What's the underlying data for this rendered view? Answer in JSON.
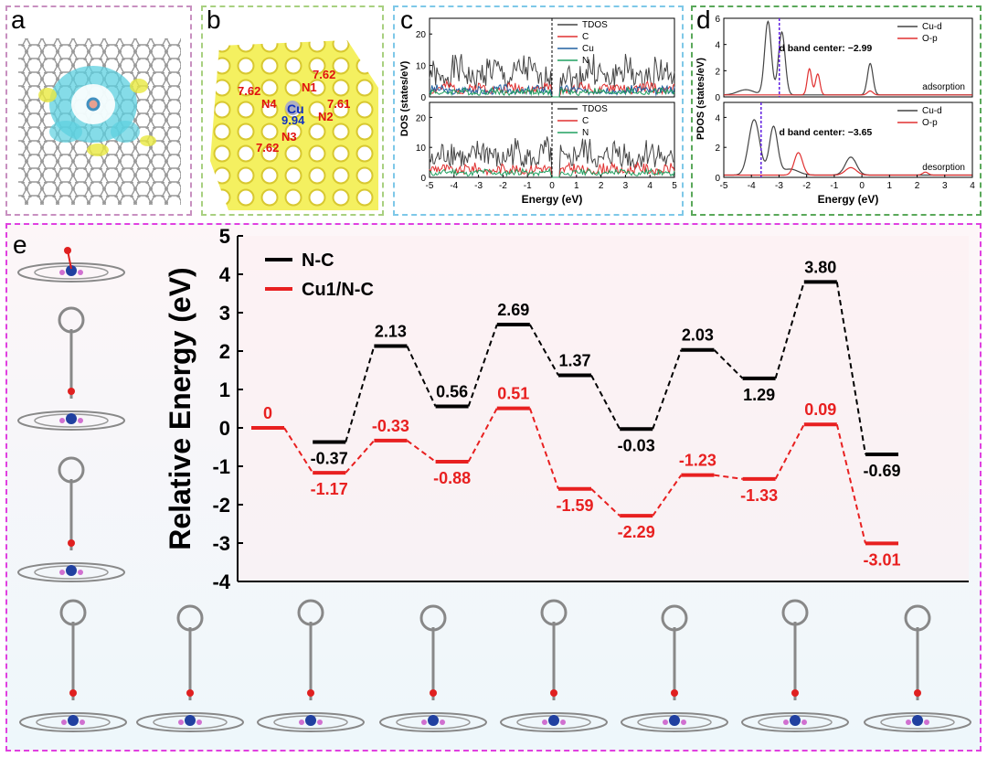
{
  "colors": {
    "panel_a": "#c890c0",
    "panel_b": "#a8d080",
    "panel_c": "#7ec8e8",
    "panel_d": "#5aa85a",
    "panel_e": "#e040e0",
    "tdos": "#444444",
    "carbon": "#e03030",
    "copper": "#2060a0",
    "nitrogen": "#20a060",
    "nc_line": "#000000",
    "cu_line": "#e82020"
  },
  "panel_labels": {
    "a": "a",
    "b": "b",
    "c": "c",
    "d": "d",
    "e": "e"
  },
  "panel_b": {
    "atoms": [
      "Cu",
      "N1",
      "N2",
      "N3",
      "N4"
    ],
    "charges": [
      "9.94",
      "7.62",
      "7.61",
      "7.62",
      "7.62"
    ]
  },
  "chart_data": [
    {
      "id": "c",
      "type": "line",
      "xlabel": "Energy (eV)",
      "ylabel": "DOS (states/eV)",
      "xlim": [
        -5,
        5
      ],
      "xticks": [
        "-5",
        "-4",
        "-3",
        "-2",
        "-1",
        "0",
        "1",
        "2",
        "3",
        "4",
        "5"
      ],
      "subplots": [
        {
          "ylim": [
            0,
            25
          ],
          "yticks": [
            "0",
            "10",
            "20"
          ],
          "legend": [
            "TDOS",
            "C",
            "Cu",
            "N"
          ]
        },
        {
          "ylim": [
            0,
            25
          ],
          "yticks": [
            "0",
            "10",
            "20"
          ],
          "legend": [
            "TDOS",
            "C",
            "N"
          ]
        }
      ]
    },
    {
      "id": "d",
      "type": "line",
      "xlabel": "Energy (eV)",
      "ylabel": "PDOS (states/eV)",
      "xlim": [
        -5,
        4
      ],
      "xticks": [
        "-5",
        "-4",
        "-3",
        "-2",
        "-1",
        "0",
        "1",
        "2",
        "3",
        "4"
      ],
      "subplots": [
        {
          "ylim": [
            0,
            6
          ],
          "yticks": [
            "0",
            "2",
            "4",
            "6"
          ],
          "legend": [
            "Cu-d",
            "O-p"
          ],
          "annotation": "d band center: −2.99",
          "state": "adsorption",
          "d_band_center": -2.99
        },
        {
          "ylim": [
            0,
            5
          ],
          "yticks": [
            "0",
            "2",
            "4"
          ],
          "legend": [
            "Cu-d",
            "O-p"
          ],
          "annotation": "d band center: −3.65",
          "state": "desorption",
          "d_band_center": -3.65
        }
      ]
    },
    {
      "id": "e",
      "type": "line",
      "ylabel": "Relative Energy (eV)",
      "ylim": [
        -4,
        5
      ],
      "yticks": [
        "-4",
        "-3",
        "-2",
        "-1",
        "0",
        "1",
        "2",
        "3",
        "4",
        "5"
      ],
      "steps": 10,
      "series": [
        {
          "name": "N-C",
          "values": [
            null,
            -0.37,
            2.13,
            0.56,
            2.69,
            1.37,
            -0.03,
            2.03,
            1.29,
            3.8,
            -0.69
          ],
          "labels": [
            "",
            "-0.37",
            "2.13",
            "0.56",
            "2.69",
            "1.37",
            "-0.03",
            "2.03",
            "1.29",
            "3.80",
            "-0.69"
          ]
        },
        {
          "name": "Cu1/N-C",
          "values": [
            0,
            -1.17,
            -0.33,
            -0.88,
            0.51,
            -1.59,
            -2.29,
            -1.23,
            -1.33,
            0.09,
            -3.01
          ],
          "labels": [
            "0",
            "-1.17",
            "-0.33",
            "-0.88",
            "0.51",
            "-1.59",
            "-2.29",
            "-1.23",
            "-1.33",
            "0.09",
            "-3.01"
          ]
        }
      ]
    }
  ]
}
